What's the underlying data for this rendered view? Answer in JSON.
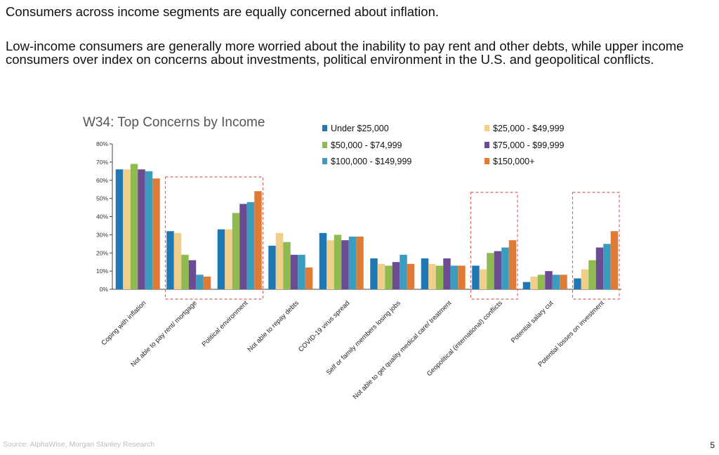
{
  "slide": {
    "headline": "Consumers across income segments are equally concerned about inflation.",
    "subhead": "Low-income consumers are generally more worried about the inability to pay rent and other debts, while upper income consumers over index on concerns about investments, political environment in the U.S. and geopolitical conflicts.",
    "source": "Source: AlphaWise, Morgan Stanley Research",
    "page_number": "5"
  },
  "chart_data": {
    "type": "bar",
    "title": "W34: Top Concerns by Income",
    "xlabel": "",
    "ylabel": "",
    "ylim": [
      0,
      80
    ],
    "y_ticks": [
      "0%",
      "10%",
      "20%",
      "30%",
      "40%",
      "50%",
      "60%",
      "70%",
      "80%"
    ],
    "grid": false,
    "legend_position": "top-right",
    "categories": [
      "Coping with inflation",
      "Not able to pay rent/ mortgage",
      "Political environment",
      "Not able to repay debts",
      "COVID-19 virus spread",
      "Self or family members losing jobs",
      "Not able to get quality medical care/ treatment",
      "Geopolitical (international) conflicts",
      "Potential salary cut",
      "Potential losses on investment"
    ],
    "series": [
      {
        "name": "Under $25,000",
        "color": "#1f77b4",
        "values": [
          66,
          32,
          33,
          24,
          31,
          17,
          17,
          13,
          4,
          6
        ]
      },
      {
        "name": "$25,000 - $49,999",
        "color": "#f0cf8a",
        "values": [
          66,
          31,
          33,
          31,
          27,
          14,
          14,
          11,
          7,
          11
        ]
      },
      {
        "name": "$50,000 - $74,999",
        "color": "#8fba4f",
        "values": [
          69,
          19,
          42,
          26,
          30,
          13,
          13,
          20,
          8,
          16
        ]
      },
      {
        "name": "$75,000 - $99,999",
        "color": "#6b4c93",
        "values": [
          66,
          16,
          47,
          19,
          27,
          15,
          17,
          21,
          10,
          23
        ]
      },
      {
        "name": "$100,000 - $149,999",
        "color": "#3a9cbf",
        "values": [
          65,
          8,
          48,
          19,
          29,
          19,
          13,
          23,
          8,
          25
        ]
      },
      {
        "name": "$150,000+",
        "color": "#e07b36",
        "values": [
          61,
          7,
          54,
          12,
          29,
          14,
          13,
          27,
          8,
          32
        ]
      }
    ],
    "highlighted_categories": [
      "Not able to pay rent/ mortgage",
      "Political environment",
      "Geopolitical (international) conflicts",
      "Potential losses on investment"
    ],
    "highlight_color": "#e06666"
  }
}
